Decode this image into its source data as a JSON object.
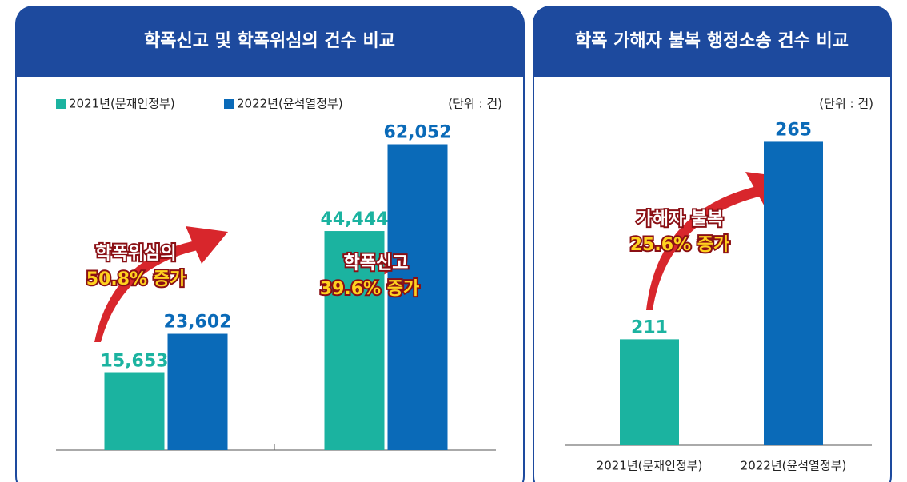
{
  "chart_data": [
    {
      "type": "bar",
      "title": "학폭신고 및 학폭위심의 건수 비교",
      "unit": "(단위 : 건)",
      "categories": [
        null,
        null
      ],
      "series": [
        {
          "name": "2021년(문재인정부)",
          "color": "#1bb3a0",
          "values": [
            15653,
            44444
          ],
          "value_labels": [
            "15,653",
            "44,444"
          ]
        },
        {
          "name": "2022년(윤석열정부)",
          "color": "#0a6ab8",
          "values": [
            23602,
            62052
          ],
          "value_labels": [
            "23,602",
            "62,052"
          ]
        }
      ],
      "ylim": [
        0,
        67000
      ],
      "annotations": [
        "학폭위심의",
        "50.8% 증가",
        "학폭신고",
        "39.6% 증가"
      ]
    },
    {
      "type": "bar",
      "title": "학폭 가해자 불복 행정소송 건수 비교",
      "unit": "(단위 : 건)",
      "categories": [
        "2021년(문재인정부)",
        "2022년(윤석열정부)"
      ],
      "values": [
        211,
        265
      ],
      "colors": [
        "#1bb3a0",
        "#0a6ab8"
      ],
      "ylim": [
        182,
        271
      ],
      "annotations": [
        "가해자 불복",
        "25.6% 증가"
      ]
    }
  ]
}
